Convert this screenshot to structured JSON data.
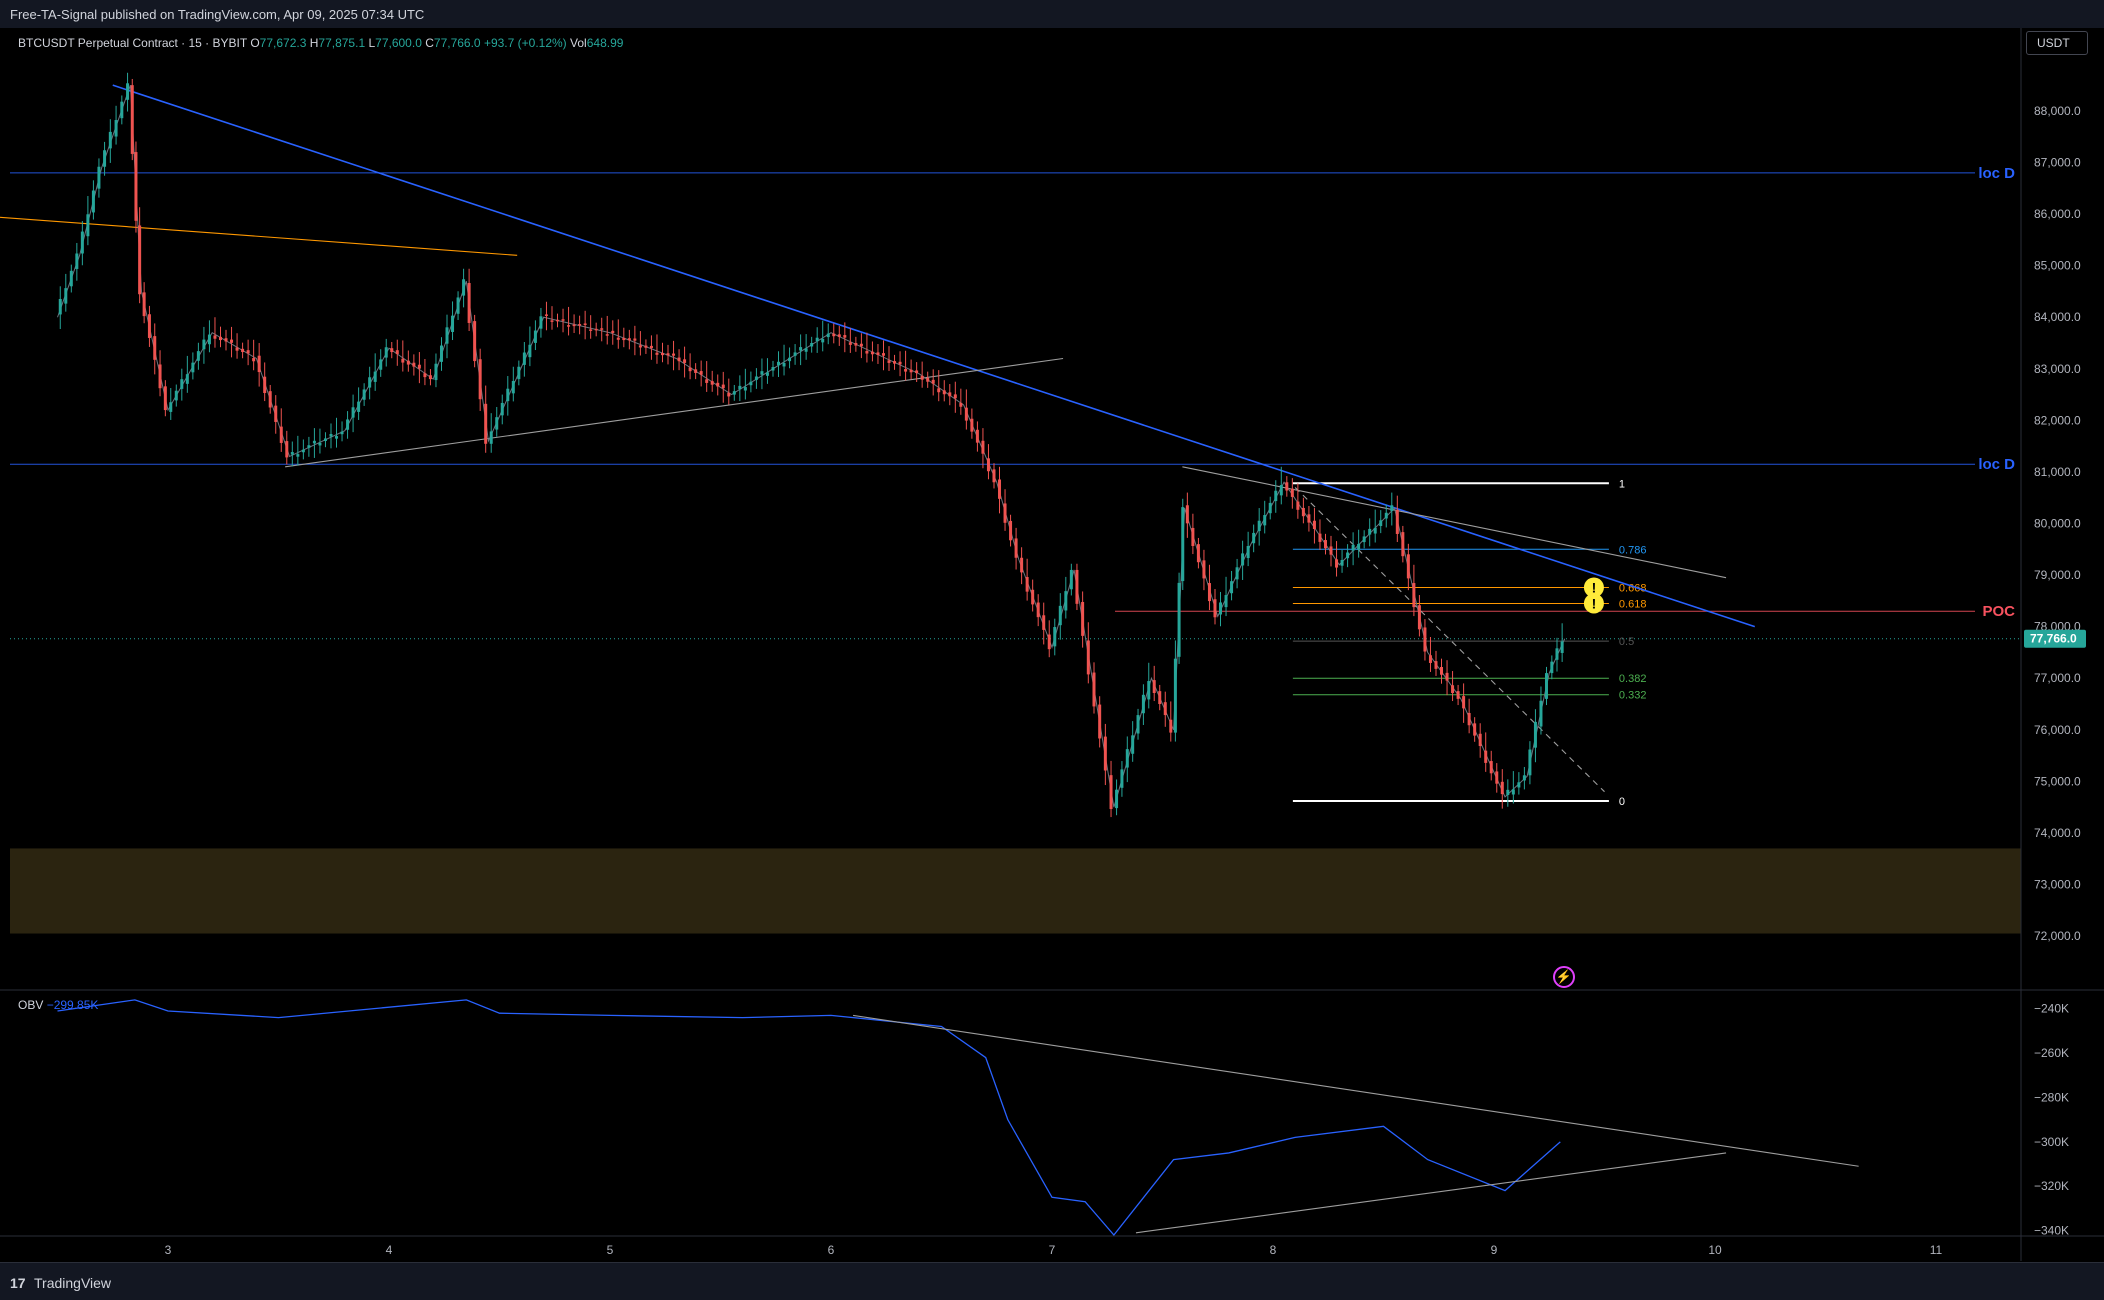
{
  "header": {
    "published": "Free-TA-Signal published on TradingView.com, Apr 09, 2025 07:34 UTC"
  },
  "legend": {
    "symbol": "BTCUSDT Perpetual Contract · 15 · BYBIT",
    "o_label": "O",
    "o": "77,672.3",
    "h_label": "H",
    "h": "77,875.1",
    "l_label": "L",
    "l": "77,600.0",
    "c_label": "C",
    "c": "77,766.0",
    "chg": "+93.7 (+0.12%)",
    "vol_label": "Vol",
    "vol": "648.99"
  },
  "currency_button": "USDT",
  "obv_legend": {
    "name": "OBV",
    "value": "−299.85K"
  },
  "footer": {
    "logo": "17",
    "brand": "TradingView"
  },
  "colors": {
    "up": "#26a69a",
    "down": "#ef5350",
    "trend_blue": "#2962ff",
    "orange": "#ff9800",
    "poc": "#f7525f",
    "zone": "#2b2410",
    "obv": "#2962ff",
    "yellow": "#ffeb3b"
  },
  "chart_data": {
    "type": "candlestick",
    "symbol": "BTCUSDT",
    "interval": "15",
    "x_ticks": [
      "3",
      "4",
      "5",
      "6",
      "7",
      "8",
      "9",
      "10",
      "11"
    ],
    "price_axis": {
      "range": [
        71750,
        88600
      ],
      "ticks": [
        "88,000.0",
        "87,000.0",
        "86,000.0",
        "85,000.0",
        "84,000.0",
        "83,000.0",
        "82,000.0",
        "81,000.0",
        "80,000.0",
        "79,000.0",
        "78,000.0",
        "77,000.0",
        "76,000.0",
        "75,000.0",
        "74,000.0",
        "73,000.0",
        "72,000.0"
      ],
      "last_price": "77,766.0",
      "last_price_value": 77766
    },
    "price_path": [
      [
        2.5,
        84000
      ],
      [
        2.6,
        85200
      ],
      [
        2.7,
        86900
      ],
      [
        2.83,
        88500
      ],
      [
        2.88,
        84500
      ],
      [
        3.0,
        82200
      ],
      [
        3.2,
        83700
      ],
      [
        3.4,
        83200
      ],
      [
        3.55,
        81300
      ],
      [
        3.8,
        81800
      ],
      [
        4.0,
        83400
      ],
      [
        4.2,
        82800
      ],
      [
        4.35,
        84700
      ],
      [
        4.45,
        81600
      ],
      [
        4.7,
        84000
      ],
      [
        5.0,
        83700
      ],
      [
        5.3,
        83200
      ],
      [
        5.55,
        82500
      ],
      [
        6.0,
        83700
      ],
      [
        6.4,
        82900
      ],
      [
        6.6,
        82300
      ],
      [
        6.75,
        80800
      ],
      [
        6.85,
        79300
      ],
      [
        7.0,
        77600
      ],
      [
        7.1,
        79100
      ],
      [
        7.28,
        74500
      ],
      [
        7.45,
        77000
      ],
      [
        7.55,
        76000
      ],
      [
        7.6,
        80300
      ],
      [
        7.75,
        78200
      ],
      [
        7.9,
        79600
      ],
      [
        8.05,
        80800
      ],
      [
        8.3,
        79200
      ],
      [
        8.55,
        80300
      ],
      [
        8.7,
        77500
      ],
      [
        8.85,
        76600
      ],
      [
        9.05,
        74700
      ],
      [
        9.15,
        75100
      ],
      [
        9.25,
        77100
      ],
      [
        9.32,
        77766
      ]
    ],
    "obv_axis": {
      "range": [
        -342000,
        -232000
      ],
      "ticks": [
        "−240K",
        "−260K",
        "−280K",
        "−300K",
        "−320K",
        "−340K"
      ]
    },
    "obv_path": [
      [
        2.5,
        -241000
      ],
      [
        2.85,
        -236000
      ],
      [
        3.0,
        -241000
      ],
      [
        3.5,
        -244000
      ],
      [
        4.35,
        -236000
      ],
      [
        4.5,
        -242000
      ],
      [
        5.0,
        -243000
      ],
      [
        5.6,
        -244000
      ],
      [
        6.0,
        -243000
      ],
      [
        6.5,
        -248000
      ],
      [
        6.7,
        -262000
      ],
      [
        6.8,
        -290000
      ],
      [
        7.0,
        -325000
      ],
      [
        7.15,
        -327000
      ],
      [
        7.28,
        -342000
      ],
      [
        7.55,
        -308000
      ],
      [
        7.8,
        -305000
      ],
      [
        8.1,
        -298000
      ],
      [
        8.5,
        -293000
      ],
      [
        8.7,
        -308000
      ],
      [
        9.05,
        -322000
      ],
      [
        9.3,
        -300000
      ]
    ],
    "fib_levels": [
      {
        "label": "1",
        "price": 80780,
        "color": "#ffffff"
      },
      {
        "label": "0.786",
        "price": 79500,
        "color": "#2196f3"
      },
      {
        "label": "0.668",
        "price": 78760,
        "color": "#ff9800"
      },
      {
        "label": "0.618",
        "price": 78450,
        "color": "#ff9800"
      },
      {
        "label": "0.5",
        "price": 77720,
        "color": "#555555"
      },
      {
        "label": "0.382",
        "price": 77000,
        "color": "#4caf50"
      },
      {
        "label": "0.332",
        "price": 76680,
        "color": "#4caf50"
      },
      {
        "label": "0",
        "price": 74620,
        "color": "#ffffff"
      }
    ],
    "horizontal_levels": [
      {
        "label": "loc D",
        "price": 86800,
        "color": "#2962ff"
      },
      {
        "label": "loc D",
        "price": 81150,
        "color": "#2962ff"
      },
      {
        "label": "POC",
        "price": 78300,
        "color": "#f7525f"
      }
    ],
    "zone": {
      "from": 72050,
      "to": 73700
    },
    "trend_lines": [
      {
        "name": "main-downtrend",
        "p1": [
          2.75,
          88500
        ],
        "p2": [
          10.18,
          78000
        ],
        "color": "#2962ff"
      },
      {
        "name": "orange-line",
        "p1": [
          2.2,
          85950
        ],
        "p2": [
          4.58,
          85200
        ],
        "color": "#ff9800"
      },
      {
        "name": "support-line",
        "p1": [
          3.53,
          81100
        ],
        "p2": [
          7.05,
          83200
        ],
        "color": "#9e9e9e"
      },
      {
        "name": "upper-wedge",
        "p1": [
          7.59,
          81100
        ],
        "p2": [
          10.05,
          78950
        ],
        "color": "#9e9e9e"
      },
      {
        "name": "dashed-fib-diag",
        "p1": [
          8.1,
          80700
        ],
        "p2": [
          9.5,
          74800
        ],
        "color": "#9e9e9e",
        "dashed": true
      }
    ],
    "obv_lines": [
      {
        "name": "obv-upper",
        "p1": [
          6.1,
          -243000
        ],
        "p2": [
          10.65,
          -311000
        ]
      },
      {
        "name": "obv-lower",
        "p1": [
          7.38,
          -341000
        ],
        "p2": [
          10.05,
          -305000
        ]
      }
    ]
  }
}
